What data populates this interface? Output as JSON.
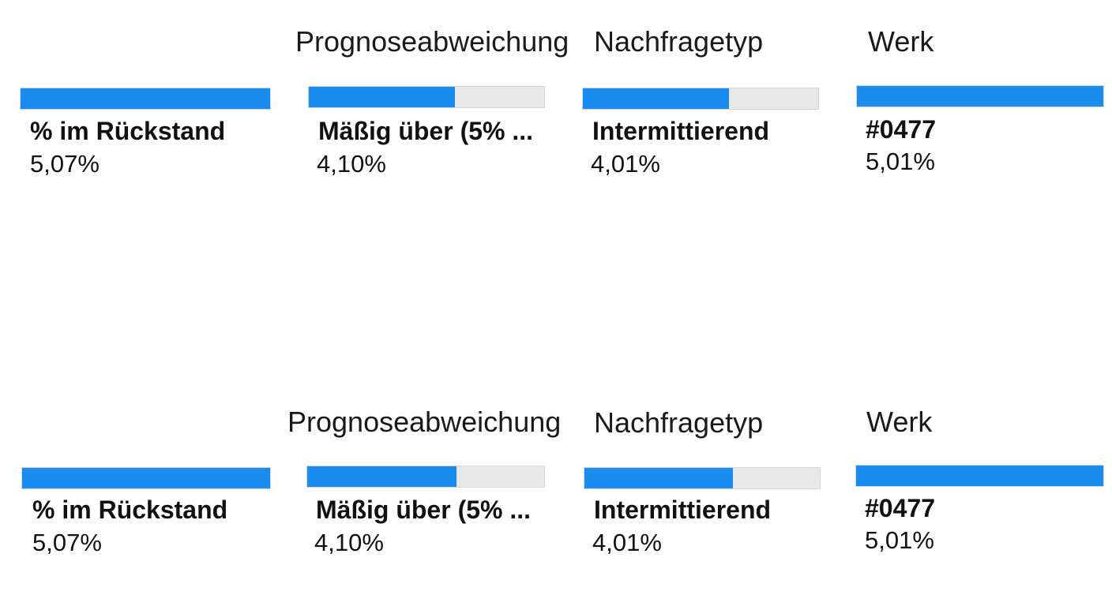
{
  "accent_color": "#1a8cf0",
  "track_color": "#e8e8e8",
  "tree_rows": [
    {
      "nodes": [
        {
          "header": "",
          "name": "% im Rückstand",
          "value": "5,07%",
          "fill_fraction": 1.0
        },
        {
          "header": "Prognoseabweichung",
          "name": "Mäßig über (5% ...",
          "value": "4,10%",
          "fill_fraction": 0.62
        },
        {
          "header": "Nachfragetyp",
          "name": "Intermittierend",
          "value": "4,01%",
          "fill_fraction": 0.62
        },
        {
          "header": "Werk",
          "name": "#0477",
          "value": "5,01%",
          "fill_fraction": 1.0
        }
      ]
    },
    {
      "nodes": [
        {
          "header": "",
          "name": "% im Rückstand",
          "value": "5,07%",
          "fill_fraction": 1.0
        },
        {
          "header": "Prognoseabweichung",
          "name": "Mäßig über (5% ...",
          "value": "4,10%",
          "fill_fraction": 0.63
        },
        {
          "header": "Nachfragetyp",
          "name": "Intermittierend",
          "value": "4,01%",
          "fill_fraction": 0.63
        },
        {
          "header": "Werk",
          "name": "#0477",
          "value": "5,01%",
          "fill_fraction": 1.0
        }
      ]
    }
  ]
}
